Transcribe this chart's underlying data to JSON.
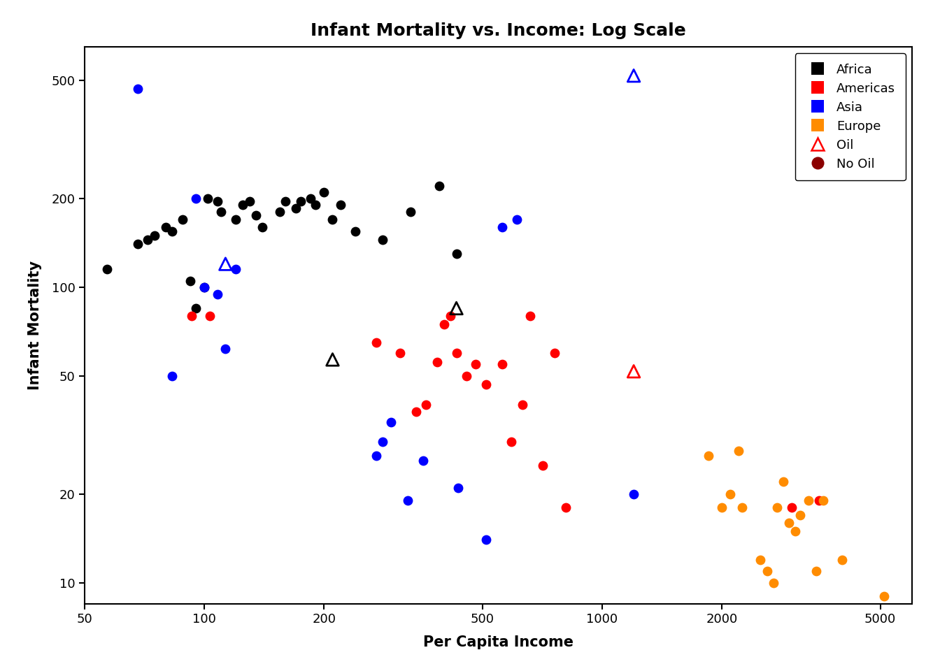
{
  "title": "Infant Mortality vs. Income: Log Scale",
  "xlabel": "Per Capita Income",
  "ylabel": "Infant Mortality",
  "africa": {
    "income": [
      57,
      68,
      72,
      75,
      80,
      83,
      88,
      92,
      95,
      100,
      102,
      108,
      110,
      120,
      125,
      130,
      135,
      140,
      155,
      160,
      170,
      175,
      185,
      190,
      200,
      210,
      220,
      240,
      280,
      330,
      390,
      430
    ],
    "mortality": [
      115,
      140,
      145,
      150,
      160,
      155,
      170,
      105,
      85,
      100,
      200,
      195,
      180,
      170,
      190,
      195,
      175,
      160,
      180,
      195,
      185,
      195,
      200,
      190,
      210,
      170,
      190,
      155,
      145,
      180,
      220,
      130
    ]
  },
  "americas": {
    "income": [
      93,
      103,
      270,
      310,
      340,
      360,
      385,
      400,
      415,
      430,
      455,
      480,
      510,
      560,
      590,
      630,
      660,
      710,
      760,
      810,
      3000,
      3500
    ],
    "mortality": [
      80,
      80,
      65,
      60,
      38,
      40,
      56,
      75,
      80,
      60,
      50,
      55,
      47,
      55,
      30,
      40,
      80,
      25,
      60,
      18,
      18,
      19
    ]
  },
  "asia": {
    "income": [
      68,
      83,
      95,
      100,
      108,
      113,
      120,
      270,
      280,
      295,
      325,
      355,
      435,
      510,
      560,
      610,
      1200
    ],
    "mortality": [
      470,
      50,
      200,
      100,
      95,
      62,
      115,
      27,
      30,
      35,
      19,
      26,
      21,
      14,
      160,
      170,
      20
    ]
  },
  "europe": {
    "income": [
      1850,
      2000,
      2100,
      2200,
      2250,
      2500,
      2600,
      2700,
      2750,
      2850,
      2950,
      3050,
      3150,
      3300,
      3450,
      3600,
      4000,
      5100
    ],
    "mortality": [
      27,
      18,
      20,
      28,
      18,
      12,
      11,
      10,
      18,
      22,
      16,
      15,
      17,
      19,
      11,
      19,
      12,
      9
    ]
  },
  "oil_triangles": {
    "income": [
      113,
      210,
      430,
      1200,
      1200
    ],
    "mortality": [
      120,
      57,
      85,
      520,
      52
    ],
    "color_edge": [
      "#0000FF",
      "#000000",
      "#000000",
      "#0000FF",
      "#FF0000"
    ]
  },
  "xlim_log": [
    1.69897,
    3.778
  ],
  "ylim_log": [
    0.9,
    2.82
  ],
  "xticks": [
    50,
    100,
    200,
    500,
    1000,
    2000,
    5000
  ],
  "yticks": [
    10,
    20,
    50,
    100,
    200,
    500
  ],
  "title_fontsize": 18,
  "axis_fontsize": 15,
  "tick_fontsize": 13,
  "legend_fontsize": 13,
  "marker_size": 80,
  "africa_color": "#000000",
  "americas_color": "#FF0000",
  "asia_color": "#0000FF",
  "europe_color": "#FF8C00",
  "no_oil_color": "#8B0000"
}
